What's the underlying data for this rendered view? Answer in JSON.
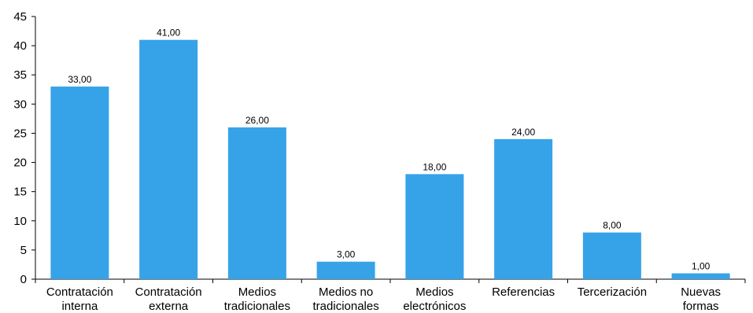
{
  "chart_data": {
    "type": "bar",
    "categories": [
      [
        "Contratación",
        "interna"
      ],
      [
        "Contratación",
        "externa"
      ],
      [
        "Medios",
        "tradicionales"
      ],
      [
        "Medios no",
        "tradicionales"
      ],
      [
        "Medios",
        "electrónicos"
      ],
      [
        "Referencias"
      ],
      [
        "Tercerización"
      ],
      [
        "Nuevas",
        "formas"
      ]
    ],
    "values": [
      33,
      41,
      26,
      3,
      18,
      24,
      8,
      1
    ],
    "value_labels": [
      "33,00",
      "41,00",
      "26,00",
      "3,00",
      "18,00",
      "24,00",
      "8,00",
      "1,00"
    ],
    "yticks": [
      "0",
      "5",
      "10",
      "15",
      "20",
      "25",
      "30",
      "35",
      "40",
      "45"
    ],
    "ylim": [
      0,
      45
    ],
    "title": "",
    "xlabel": "",
    "ylabel": "",
    "grid": false,
    "bar_color": "#36a3e8"
  }
}
